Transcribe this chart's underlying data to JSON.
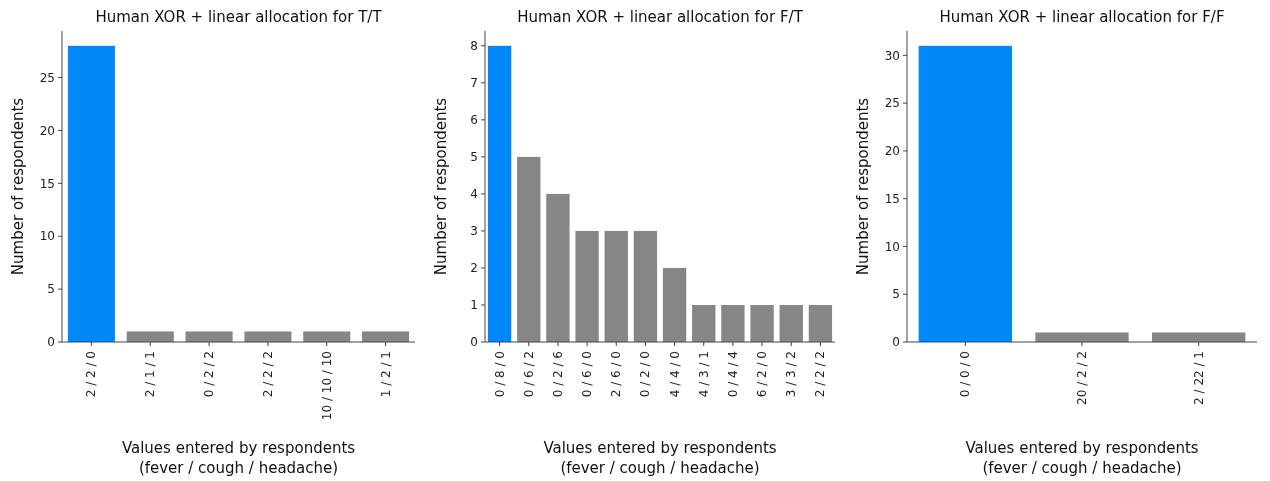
{
  "chart_data": [
    {
      "type": "bar",
      "title": "Human XOR + linear allocation for T/T",
      "xlabel": "Values entered by respondents\n(fever / cough / headache)",
      "ylabel": "Number of respondents",
      "categories": [
        "2 / 2 / 0",
        "2 / 1 / 1",
        "0 / 2 / 2",
        "2 / 2 / 2",
        "10 / 10 / 10",
        "1 / 2 / 1"
      ],
      "values": [
        28,
        1,
        1,
        1,
        1,
        1
      ],
      "colors": [
        "#0088f8",
        "#868686",
        "#868686",
        "#868686",
        "#868686",
        "#868686"
      ],
      "ylim": [
        0,
        29.4
      ],
      "yticks": [
        0,
        5,
        10,
        15,
        20,
        25
      ],
      "grid": false
    },
    {
      "type": "bar",
      "title": "Human XOR + linear allocation for F/T",
      "xlabel": "Values entered by respondents\n(fever / cough / headache)",
      "ylabel": "Number of respondents",
      "categories": [
        "0 / 8 / 0",
        "0 / 6 / 2",
        "0 / 2 / 6",
        "0 / 6 / 0",
        "2 / 6 / 0",
        "0 / 2 / 0",
        "4 / 4 / 0",
        "4 / 3 / 1",
        "0 / 4 / 4",
        "6 / 2 / 0",
        "3 / 3 / 2",
        "2 / 2 / 2"
      ],
      "values": [
        8,
        5,
        4,
        3,
        3,
        3,
        2,
        1,
        1,
        1,
        1,
        1
      ],
      "colors": [
        "#0088f8",
        "#868686",
        "#868686",
        "#868686",
        "#868686",
        "#868686",
        "#868686",
        "#868686",
        "#868686",
        "#868686",
        "#868686",
        "#868686"
      ],
      "ylim": [
        0,
        8.4
      ],
      "yticks": [
        0,
        1,
        2,
        3,
        4,
        5,
        6,
        7,
        8
      ],
      "grid": false
    },
    {
      "type": "bar",
      "title": "Human XOR + linear allocation for F/F",
      "xlabel": "Values entered by respondents\n(fever / cough / headache)",
      "ylabel": "Number of respondents",
      "categories": [
        "0 / 0 / 0",
        "20 / 2 / 2",
        "2 / 22 / 1"
      ],
      "values": [
        31,
        1,
        1
      ],
      "colors": [
        "#0088f8",
        "#868686",
        "#868686"
      ],
      "ylim": [
        0,
        32.55
      ],
      "yticks": [
        0,
        5,
        10,
        15,
        20,
        25,
        30
      ],
      "grid": false
    }
  ]
}
